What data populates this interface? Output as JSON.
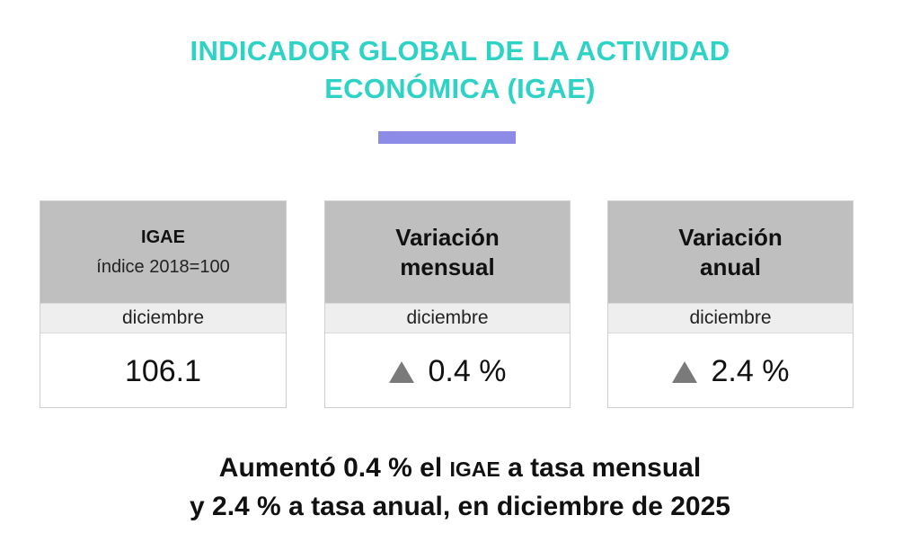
{
  "title": {
    "line1": "INDICADOR GLOBAL DE LA ACTIVIDAD",
    "line2": "ECONÓMICA (IGAE)"
  },
  "colors": {
    "title": "#2ed3c6",
    "accent_bar": "#8c8ce6",
    "card_header": "#bfbfbf",
    "card_subheader": "#eeeeee",
    "up_arrow": "#7a7a7a"
  },
  "cards": [
    {
      "header_line1": "IGAE",
      "header_line2": "índice 2018=100",
      "period": "diciembre",
      "value": "106.1"
    },
    {
      "header_line1": "Variación",
      "header_line2": "mensual",
      "period": "diciembre",
      "arrow_icon": "triangle-up-icon",
      "value": "0.4 %"
    },
    {
      "header_line1": "Variación",
      "header_line2": "anual",
      "period": "diciembre",
      "arrow_icon": "triangle-up-icon",
      "value": "2.4 %"
    }
  ],
  "summary": {
    "line1_a": "Aumentó 0.4 % el ",
    "line1_b": "IGAE",
    "line1_c": " a tasa mensual",
    "line2": "y 2.4 % a tasa anual, en diciembre de 2025"
  }
}
